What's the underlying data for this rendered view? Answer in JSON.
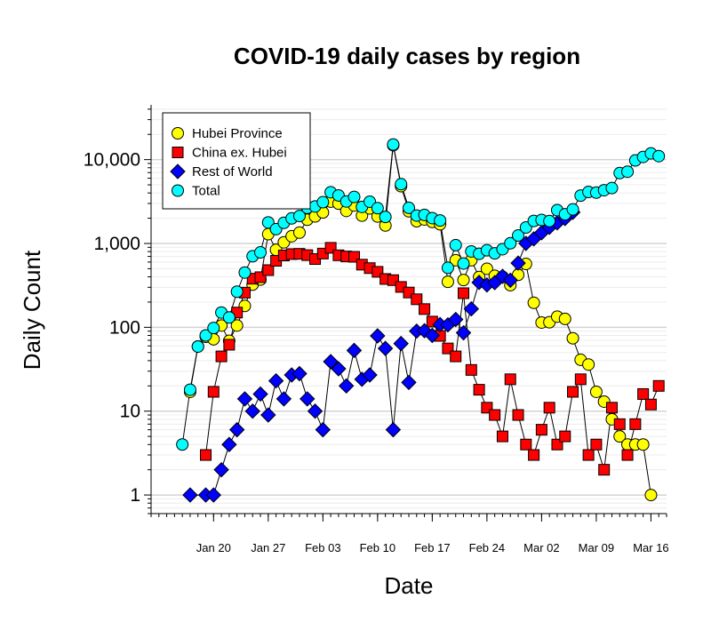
{
  "chart_data": {
    "type": "line",
    "title": "COVID-19 daily cases by region",
    "xlabel": "Date",
    "ylabel": "Daily Count",
    "yscale": "log",
    "ylim": [
      0.6,
      45000
    ],
    "xlim": [
      "2020-01-12",
      "2020-03-18"
    ],
    "grid": true,
    "legend_position": "top-left",
    "y_ticks": [
      {
        "value": 1,
        "label": "1"
      },
      {
        "value": 10,
        "label": "10"
      },
      {
        "value": 100,
        "label": "100"
      },
      {
        "value": 1000,
        "label": "1,000"
      },
      {
        "value": 10000,
        "label": "10,000"
      }
    ],
    "x_ticks": [
      {
        "value": "2020-01-20",
        "label": "Jan 20"
      },
      {
        "value": "2020-01-27",
        "label": "Jan 27"
      },
      {
        "value": "2020-02-03",
        "label": "Feb 03"
      },
      {
        "value": "2020-02-10",
        "label": "Feb 10"
      },
      {
        "value": "2020-02-17",
        "label": "Feb 17"
      },
      {
        "value": "2020-02-24",
        "label": "Feb 24"
      },
      {
        "value": "2020-03-02",
        "label": "Mar 02"
      },
      {
        "value": "2020-03-09",
        "label": "Mar 09"
      },
      {
        "value": "2020-03-16",
        "label": "Mar 16"
      }
    ],
    "series": [
      {
        "name": "Hubei Province",
        "marker": "circle",
        "color": "#ffff00",
        "points": [
          [
            "2020-01-17",
            17
          ],
          [
            "2020-01-18",
            59
          ],
          [
            "2020-01-19",
            77
          ],
          [
            "2020-01-20",
            72
          ],
          [
            "2020-01-21",
            105
          ],
          [
            "2020-01-22",
            69
          ],
          [
            "2020-01-23",
            105
          ],
          [
            "2020-01-24",
            180
          ],
          [
            "2020-01-25",
            323
          ],
          [
            "2020-01-26",
            371
          ],
          [
            "2020-01-27",
            1291
          ],
          [
            "2020-01-28",
            840
          ],
          [
            "2020-01-29",
            1032
          ],
          [
            "2020-01-30",
            1220
          ],
          [
            "2020-01-31",
            1347
          ],
          [
            "2020-02-01",
            1921
          ],
          [
            "2020-02-02",
            2103
          ],
          [
            "2020-02-03",
            2345
          ],
          [
            "2020-02-04",
            3156
          ],
          [
            "2020-02-05",
            2987
          ],
          [
            "2020-02-06",
            2447
          ],
          [
            "2020-02-07",
            2841
          ],
          [
            "2020-02-08",
            2147
          ],
          [
            "2020-02-09",
            2618
          ],
          [
            "2020-02-10",
            2097
          ],
          [
            "2020-02-11",
            1638
          ],
          [
            "2020-02-12",
            14840
          ],
          [
            "2020-02-13",
            4823
          ],
          [
            "2020-02-14",
            2420
          ],
          [
            "2020-02-15",
            1843
          ],
          [
            "2020-02-16",
            1933
          ],
          [
            "2020-02-17",
            1807
          ],
          [
            "2020-02-18",
            1693
          ],
          [
            "2020-02-19",
            349
          ],
          [
            "2020-02-20",
            631
          ],
          [
            "2020-02-21",
            366
          ],
          [
            "2020-02-22",
            630
          ],
          [
            "2020-02-23",
            398
          ],
          [
            "2020-02-24",
            499
          ],
          [
            "2020-02-25",
            411
          ],
          [
            "2020-02-26",
            401
          ],
          [
            "2020-02-27",
            318
          ],
          [
            "2020-02-28",
            423
          ],
          [
            "2020-02-29",
            570
          ],
          [
            "2020-03-01",
            196
          ],
          [
            "2020-03-02",
            114
          ],
          [
            "2020-03-03",
            115
          ],
          [
            "2020-03-04",
            134
          ],
          [
            "2020-03-05",
            126
          ],
          [
            "2020-03-06",
            74
          ],
          [
            "2020-03-07",
            41
          ],
          [
            "2020-03-08",
            36
          ],
          [
            "2020-03-09",
            17
          ],
          [
            "2020-03-10",
            13
          ],
          [
            "2020-03-11",
            8
          ],
          [
            "2020-03-12",
            5
          ],
          [
            "2020-03-13",
            4
          ],
          [
            "2020-03-14",
            4
          ],
          [
            "2020-03-15",
            4
          ],
          [
            "2020-03-16",
            1
          ]
        ]
      },
      {
        "name": "China ex. Hubei",
        "marker": "square",
        "color": "#ff0000",
        "points": [
          [
            "2020-01-19",
            3
          ],
          [
            "2020-01-20",
            17
          ],
          [
            "2020-01-21",
            45
          ],
          [
            "2020-01-22",
            62
          ],
          [
            "2020-01-23",
            150
          ],
          [
            "2020-01-24",
            259
          ],
          [
            "2020-01-25",
            380
          ],
          [
            "2020-01-26",
            396
          ],
          [
            "2020-01-27",
            481
          ],
          [
            "2020-01-28",
            621
          ],
          [
            "2020-01-29",
            719
          ],
          [
            "2020-01-30",
            747
          ],
          [
            "2020-01-31",
            752
          ],
          [
            "2020-02-01",
            726
          ],
          [
            "2020-02-02",
            652
          ],
          [
            "2020-02-03",
            757
          ],
          [
            "2020-02-04",
            887
          ],
          [
            "2020-02-05",
            723
          ],
          [
            "2020-02-06",
            700
          ],
          [
            "2020-02-07",
            693
          ],
          [
            "2020-02-08",
            559
          ],
          [
            "2020-02-09",
            508
          ],
          [
            "2020-02-10",
            459
          ],
          [
            "2020-02-11",
            377
          ],
          [
            "2020-02-12",
            365
          ],
          [
            "2020-02-13",
            303
          ],
          [
            "2020-02-14",
            260
          ],
          [
            "2020-02-15",
            216
          ],
          [
            "2020-02-16",
            165
          ],
          [
            "2020-02-17",
            117
          ],
          [
            "2020-02-18",
            79
          ],
          [
            "2020-02-19",
            56
          ],
          [
            "2020-02-20",
            45
          ],
          [
            "2020-02-21",
            255
          ],
          [
            "2020-02-22",
            31
          ],
          [
            "2020-02-23",
            18
          ],
          [
            "2020-02-24",
            11
          ],
          [
            "2020-02-25",
            9
          ],
          [
            "2020-02-26",
            5
          ],
          [
            "2020-02-27",
            24
          ],
          [
            "2020-02-28",
            9
          ],
          [
            "2020-02-29",
            4
          ],
          [
            "2020-03-01",
            3
          ],
          [
            "2020-03-02",
            6
          ],
          [
            "2020-03-03",
            11
          ],
          [
            "2020-03-04",
            4
          ],
          [
            "2020-03-05",
            5
          ],
          [
            "2020-03-06",
            17
          ],
          [
            "2020-03-07",
            24
          ],
          [
            "2020-03-08",
            3
          ],
          [
            "2020-03-09",
            4
          ],
          [
            "2020-03-10",
            2
          ],
          [
            "2020-03-11",
            11
          ],
          [
            "2020-03-12",
            7
          ],
          [
            "2020-03-13",
            3
          ],
          [
            "2020-03-14",
            7
          ],
          [
            "2020-03-15",
            16
          ],
          [
            "2020-03-16",
            12
          ],
          [
            "2020-03-17",
            20
          ]
        ]
      },
      {
        "name": "Rest of World",
        "marker": "diamond",
        "color": "#0000ff",
        "points": [
          [
            "2020-01-17",
            1
          ],
          [
            "2020-01-19",
            1
          ],
          [
            "2020-01-20",
            1
          ],
          [
            "2020-01-21",
            2
          ],
          [
            "2020-01-22",
            4
          ],
          [
            "2020-01-23",
            6
          ],
          [
            "2020-01-24",
            14
          ],
          [
            "2020-01-25",
            10
          ],
          [
            "2020-01-26",
            16
          ],
          [
            "2020-01-27",
            9
          ],
          [
            "2020-01-28",
            23
          ],
          [
            "2020-01-29",
            14
          ],
          [
            "2020-01-30",
            27
          ],
          [
            "2020-01-31",
            28
          ],
          [
            "2020-02-01",
            14
          ],
          [
            "2020-02-02",
            10
          ],
          [
            "2020-02-03",
            6
          ],
          [
            "2020-02-04",
            39
          ],
          [
            "2020-02-05",
            32
          ],
          [
            "2020-02-06",
            20
          ],
          [
            "2020-02-07",
            53
          ],
          [
            "2020-02-08",
            24
          ],
          [
            "2020-02-09",
            27
          ],
          [
            "2020-02-10",
            79
          ],
          [
            "2020-02-11",
            56
          ],
          [
            "2020-02-12",
            6
          ],
          [
            "2020-02-13",
            64
          ],
          [
            "2020-02-14",
            22
          ],
          [
            "2020-02-15",
            90
          ],
          [
            "2020-02-16",
            91
          ],
          [
            "2020-02-17",
            80
          ],
          [
            "2020-02-18",
            108
          ],
          [
            "2020-02-19",
            107
          ],
          [
            "2020-02-20",
            124
          ],
          [
            "2020-02-21",
            86
          ],
          [
            "2020-02-22",
            166
          ],
          [
            "2020-02-23",
            343
          ],
          [
            "2020-02-24",
            320
          ],
          [
            "2020-02-25",
            341
          ],
          [
            "2020-02-26",
            405
          ],
          [
            "2020-02-27",
            364
          ],
          [
            "2020-02-28",
            583
          ],
          [
            "2020-02-29",
            1002
          ],
          [
            "2020-03-01",
            1134
          ],
          [
            "2020-03-02",
            1341
          ],
          [
            "2020-03-03",
            1559
          ],
          [
            "2020-03-04",
            1760
          ],
          [
            "2020-03-05",
            1983
          ],
          [
            "2020-03-06",
            2357
          ]
        ]
      },
      {
        "name": "Total",
        "marker": "circle",
        "color": "#00ffff",
        "points": [
          [
            "2020-01-16",
            4
          ],
          [
            "2020-01-17",
            18
          ],
          [
            "2020-01-18",
            59
          ],
          [
            "2020-01-19",
            80
          ],
          [
            "2020-01-20",
            98
          ],
          [
            "2020-01-21",
            150
          ],
          [
            "2020-01-22",
            131
          ],
          [
            "2020-01-23",
            266
          ],
          [
            "2020-01-24",
            450
          ],
          [
            "2020-01-25",
            703
          ],
          [
            "2020-01-26",
            783
          ],
          [
            "2020-01-27",
            1781
          ],
          [
            "2020-01-28",
            1480
          ],
          [
            "2020-01-29",
            1762
          ],
          [
            "2020-01-30",
            1992
          ],
          [
            "2020-01-31",
            2127
          ],
          [
            "2020-02-01",
            2660
          ],
          [
            "2020-02-02",
            2764
          ],
          [
            "2020-02-03",
            3108
          ],
          [
            "2020-02-04",
            4082
          ],
          [
            "2020-02-05",
            3740
          ],
          [
            "2020-02-06",
            3170
          ],
          [
            "2020-02-07",
            3588
          ],
          [
            "2020-02-08",
            2730
          ],
          [
            "2020-02-09",
            3152
          ],
          [
            "2020-02-10",
            2635
          ],
          [
            "2020-02-11",
            2073
          ],
          [
            "2020-02-12",
            15152
          ],
          [
            "2020-02-13",
            5093
          ],
          [
            "2020-02-14",
            2658
          ],
          [
            "2020-02-15",
            2151
          ],
          [
            "2020-02-16",
            2188
          ],
          [
            "2020-02-17",
            2005
          ],
          [
            "2020-02-18",
            1880
          ],
          [
            "2020-02-19",
            512
          ],
          [
            "2020-02-20",
            954
          ],
          [
            "2020-02-21",
            576
          ],
          [
            "2020-02-22",
            803
          ],
          [
            "2020-02-23",
            753
          ],
          [
            "2020-02-24",
            830
          ],
          [
            "2020-02-25",
            761
          ],
          [
            "2020-02-26",
            854
          ],
          [
            "2020-02-27",
            1006
          ],
          [
            "2020-02-28",
            1244
          ],
          [
            "2020-02-29",
            1551
          ],
          [
            "2020-03-01",
            1857
          ],
          [
            "2020-03-02",
            1908
          ],
          [
            "2020-03-03",
            1849
          ],
          [
            "2020-03-04",
            2497
          ],
          [
            "2020-03-05",
            2228
          ],
          [
            "2020-03-06",
            2548
          ],
          [
            "2020-03-07",
            3722
          ],
          [
            "2020-03-08",
            4113
          ],
          [
            "2020-03-09",
            4037
          ],
          [
            "2020-03-10",
            4313
          ],
          [
            "2020-03-11",
            4579
          ],
          [
            "2020-03-12",
            6907
          ],
          [
            "2020-03-13",
            7181
          ],
          [
            "2020-03-14",
            9778
          ],
          [
            "2020-03-15",
            10773
          ],
          [
            "2020-03-16",
            11876
          ],
          [
            "2020-03-17",
            11004
          ]
        ]
      }
    ]
  }
}
